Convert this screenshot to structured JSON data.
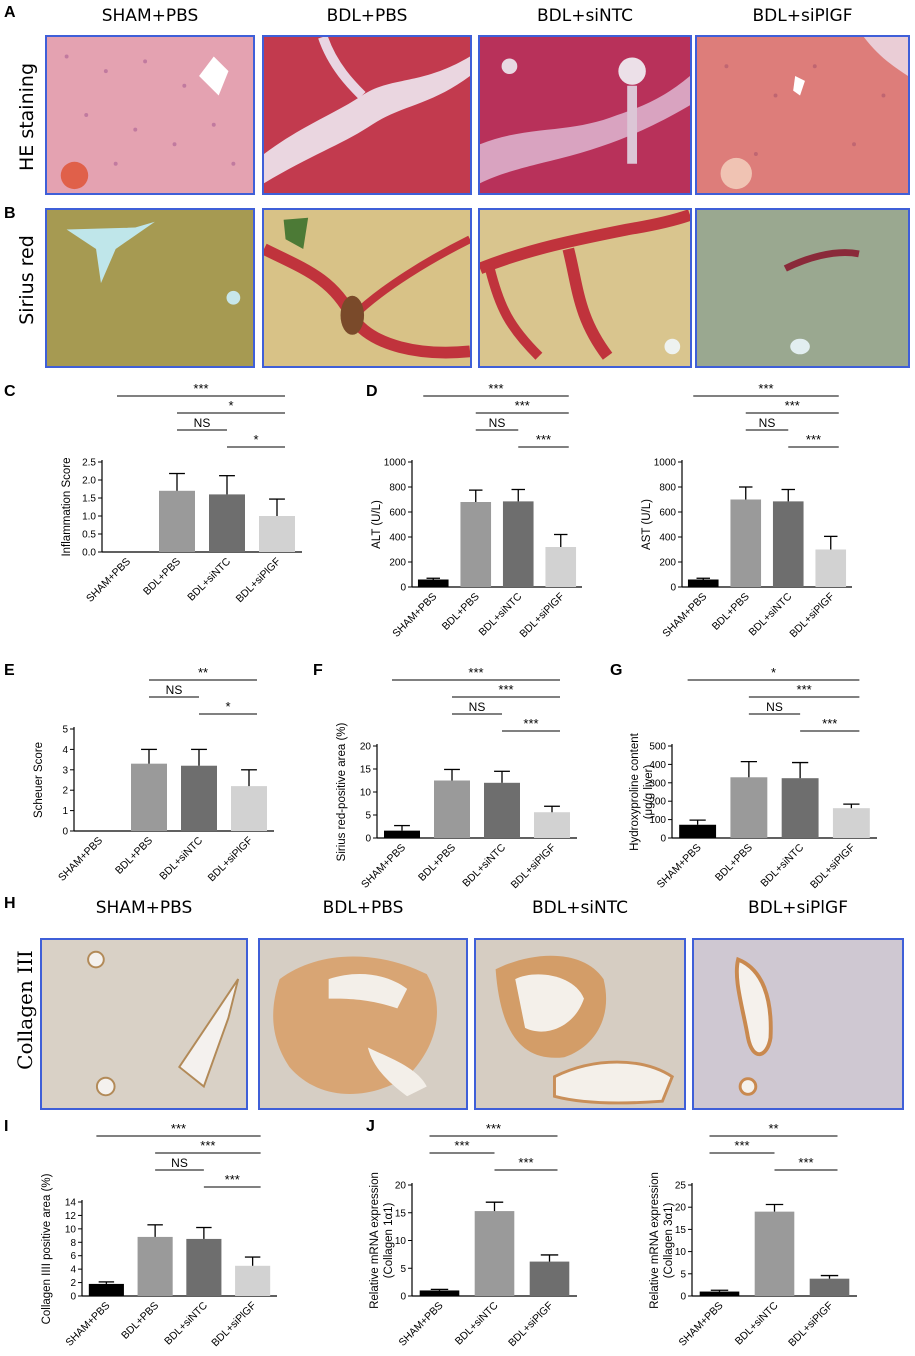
{
  "panels": {
    "A": "A",
    "B": "B",
    "C": "C",
    "D": "D",
    "E": "E",
    "F": "F",
    "G": "G",
    "H": "H",
    "I": "I",
    "J": "J"
  },
  "groups_top": [
    "SHAM+PBS",
    "BDL+PBS",
    "BDL+siNTC",
    "BDL+siPlGF"
  ],
  "groups_h": [
    "SHAM+PBS",
    "BDL+PBS",
    "BDL+siNTC",
    "BDL+siPlGF"
  ],
  "row_labels": {
    "he": "HE staining",
    "sirius": "Sirius red",
    "collagen": "Collagen III"
  },
  "colors": {
    "border": "#3f5fd8",
    "bar_black": "#000000",
    "bar_gray1": "#9a9a9a",
    "bar_gray2": "#6e6e6e",
    "bar_gray3": "#d2d2d2"
  },
  "chart_data": [
    {
      "id": "C",
      "type": "bar",
      "categories": [
        "SHAM+PBS",
        "BDL+PBS",
        "BDL+siNTC",
        "BDL+siPlGF"
      ],
      "values": [
        0,
        1.7,
        1.6,
        1.0
      ],
      "errors": [
        0,
        0.48,
        0.52,
        0.47
      ],
      "ylabel": "Inflammation Score",
      "ylim": [
        0,
        2.5
      ],
      "yticks": [
        "0.0",
        "0.5",
        "1.0",
        "1.5",
        "2.0",
        "2.5"
      ],
      "sig": [
        {
          "from": 0,
          "to": 3,
          "label": "***"
        },
        {
          "from": 1,
          "to": 3,
          "label": "*"
        },
        {
          "from": 1,
          "to": 2,
          "label": "NS"
        },
        {
          "from": 2,
          "to": 3,
          "label": "*"
        }
      ]
    },
    {
      "id": "D1",
      "type": "bar",
      "categories": [
        "SHAM+PBS",
        "BDL+PBS",
        "BDL+siNTC",
        "BDL+siPlGF"
      ],
      "values": [
        60,
        680,
        685,
        320
      ],
      "errors": [
        10,
        95,
        95,
        100
      ],
      "ylabel": "ALT (U/L)",
      "ylim": [
        0,
        1000
      ],
      "yticks": [
        "0",
        "200",
        "400",
        "600",
        "800",
        "1000"
      ],
      "sig": [
        {
          "from": 0,
          "to": 3,
          "label": "***"
        },
        {
          "from": 1,
          "to": 3,
          "label": "***"
        },
        {
          "from": 1,
          "to": 2,
          "label": "NS"
        },
        {
          "from": 2,
          "to": 3,
          "label": "***"
        }
      ]
    },
    {
      "id": "D2",
      "type": "bar",
      "categories": [
        "SHAM+PBS",
        "BDL+PBS",
        "BDL+siNTC",
        "BDL+siPlGF"
      ],
      "values": [
        60,
        700,
        685,
        300
      ],
      "errors": [
        10,
        100,
        95,
        105
      ],
      "ylabel": "AST (U/L)",
      "ylim": [
        0,
        1000
      ],
      "yticks": [
        "0",
        "200",
        "400",
        "600",
        "800",
        "1000"
      ],
      "sig": [
        {
          "from": 0,
          "to": 3,
          "label": "***"
        },
        {
          "from": 1,
          "to": 3,
          "label": "***"
        },
        {
          "from": 1,
          "to": 2,
          "label": "NS"
        },
        {
          "from": 2,
          "to": 3,
          "label": "***"
        }
      ]
    },
    {
      "id": "E",
      "type": "bar",
      "categories": [
        "SHAM+PBS",
        "BDL+PBS",
        "BDL+siNTC",
        "BDL+siPlGF"
      ],
      "values": [
        0,
        3.3,
        3.2,
        2.2
      ],
      "errors": [
        0,
        0.7,
        0.8,
        0.8
      ],
      "ylabel": "Scheuer Score",
      "ylim": [
        0,
        5
      ],
      "yticks": [
        "0",
        "1",
        "2",
        "3",
        "4",
        "5"
      ],
      "sig": [
        {
          "from": 1,
          "to": 3,
          "label": "**"
        },
        {
          "from": 1,
          "to": 2,
          "label": "NS"
        },
        {
          "from": 2,
          "to": 3,
          "label": "*"
        }
      ]
    },
    {
      "id": "F",
      "type": "bar",
      "categories": [
        "SHAM+PBS",
        "BDL+PBS",
        "BDL+siNTC",
        "BDL+siPlGF"
      ],
      "values": [
        1.6,
        12.5,
        12.0,
        5.6
      ],
      "errors": [
        1.1,
        2.4,
        2.5,
        1.3
      ],
      "ylabel": "Sirius red-positive area (%)",
      "ylim": [
        0,
        20
      ],
      "yticks": [
        "0",
        "5",
        "10",
        "15",
        "20"
      ],
      "sig": [
        {
          "from": 0,
          "to": 3,
          "label": "***"
        },
        {
          "from": 1,
          "to": 3,
          "label": "***"
        },
        {
          "from": 1,
          "to": 2,
          "label": "NS"
        },
        {
          "from": 2,
          "to": 3,
          "label": "***"
        }
      ]
    },
    {
      "id": "G",
      "type": "bar",
      "categories": [
        "SHAM+PBS",
        "BDL+PBS",
        "BDL+siNTC",
        "BDL+siPlGF"
      ],
      "values": [
        72,
        330,
        325,
        162
      ],
      "errors": [
        25,
        85,
        85,
        22
      ],
      "ylabel": "Hydroxyproline content",
      "ylabel2": "(μg/g liver)",
      "ylim": [
        0,
        500
      ],
      "yticks": [
        "0",
        "100",
        "200",
        "300",
        "400",
        "500"
      ],
      "sig": [
        {
          "from": 0,
          "to": 3,
          "label": "*"
        },
        {
          "from": 1,
          "to": 3,
          "label": "***"
        },
        {
          "from": 1,
          "to": 2,
          "label": "NS"
        },
        {
          "from": 2,
          "to": 3,
          "label": "***"
        }
      ]
    },
    {
      "id": "I",
      "type": "bar",
      "categories": [
        "SHAM+PBS",
        "BDL+PBS",
        "BDL+siNTC",
        "BDL+siPlGF"
      ],
      "values": [
        1.8,
        8.8,
        8.5,
        4.5
      ],
      "errors": [
        0.3,
        1.8,
        1.7,
        1.3
      ],
      "ylabel": "Collagen IIII positive area (%)",
      "ylim": [
        0,
        14
      ],
      "yticks": [
        "0",
        "2",
        "4",
        "6",
        "8",
        "10",
        "12",
        "14"
      ],
      "sig": [
        {
          "from": 0,
          "to": 3,
          "label": "***"
        },
        {
          "from": 1,
          "to": 3,
          "label": "***"
        },
        {
          "from": 1,
          "to": 2,
          "label": "NS"
        },
        {
          "from": 2,
          "to": 3,
          "label": "***"
        }
      ]
    },
    {
      "id": "J1",
      "type": "bar",
      "categories": [
        "SHAM+PBS",
        "BDL+siNTC",
        "BDL+siPlGF"
      ],
      "values": [
        1.0,
        15.3,
        6.2
      ],
      "errors": [
        0.2,
        1.6,
        1.2
      ],
      "ylabel": "Relative mRNA expression",
      "ylabel2": "(Collagen 1α1)",
      "ylim": [
        0,
        20
      ],
      "yticks": [
        "0",
        "5",
        "10",
        "15",
        "20"
      ],
      "sig": [
        {
          "from": 0,
          "to": 2,
          "label": "***"
        },
        {
          "from": 0,
          "to": 1,
          "label": "***"
        },
        {
          "from": 1,
          "to": 2,
          "label": "***"
        }
      ]
    },
    {
      "id": "J2",
      "type": "bar",
      "categories": [
        "SHAM+PBS",
        "BDL+siNTC",
        "BDL+siPlGF"
      ],
      "values": [
        1.0,
        19.0,
        3.9
      ],
      "errors": [
        0.3,
        1.6,
        0.7
      ],
      "ylabel": "Relative mRNA expression",
      "ylabel2": "(Collagen 3α1)",
      "ylim": [
        0,
        25
      ],
      "yticks": [
        "0",
        "5",
        "10",
        "15",
        "20",
        "25"
      ],
      "sig": [
        {
          "from": 0,
          "to": 2,
          "label": "**"
        },
        {
          "from": 0,
          "to": 1,
          "label": "***"
        },
        {
          "from": 1,
          "to": 2,
          "label": "***"
        }
      ]
    }
  ]
}
